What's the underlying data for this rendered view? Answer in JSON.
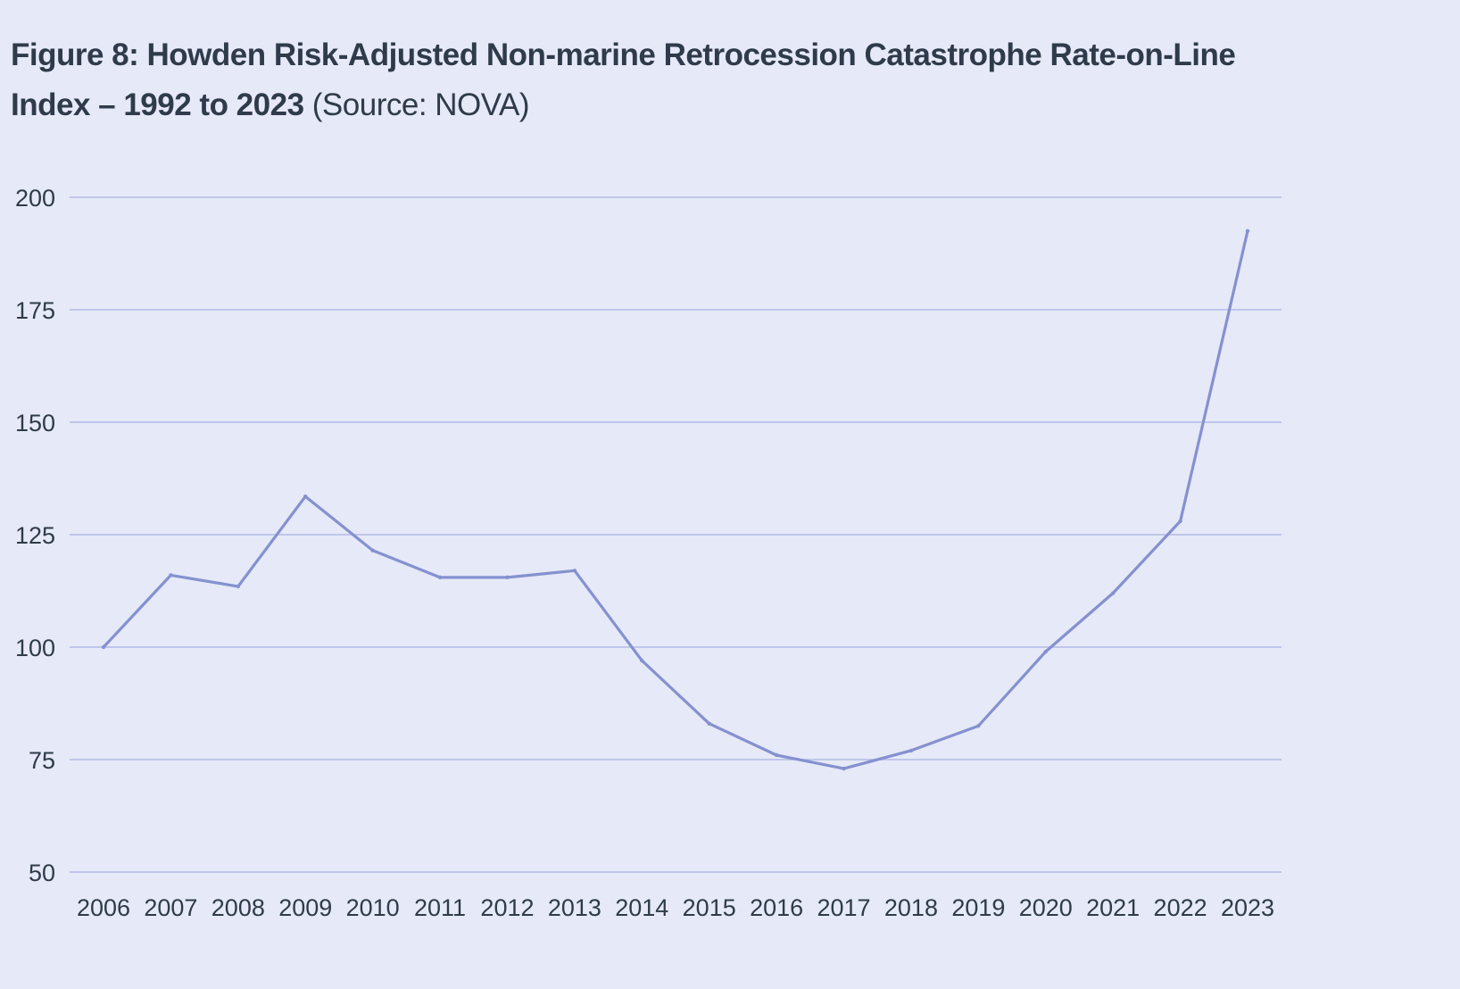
{
  "title": {
    "main": "Figure 8: Howden Risk-Adjusted Non-marine Retrocession Catastrophe Rate-on-Line Index – 1992 to 2023",
    "source": "(Source: NOVA)"
  },
  "colors": {
    "background": "#e6e9f7",
    "line": "#8591cf",
    "grid": "#b3bbe6",
    "text": "#2f3b4a"
  },
  "chart_data": {
    "type": "line",
    "title": "Figure 8: Howden Risk-Adjusted Non-marine Retrocession Catastrophe Rate-on-Line Index – 1992 to 2023",
    "subtitle": "(Source: NOVA)",
    "xlabel": "",
    "ylabel": "",
    "x": [
      "2006",
      "2007",
      "2008",
      "2009",
      "2010",
      "2011",
      "2012",
      "2013",
      "2014",
      "2015",
      "2016",
      "2017",
      "2018",
      "2019",
      "2020",
      "2021",
      "2022",
      "2023"
    ],
    "series": [
      {
        "values": [
          100,
          116,
          113.5,
          133.5,
          121.5,
          115.5,
          115.5,
          117,
          97,
          83,
          76,
          73,
          77,
          82.5,
          99,
          112,
          128,
          192.5
        ]
      }
    ],
    "ylim": [
      50,
      200
    ],
    "yticks": [
      50,
      75,
      100,
      125,
      150,
      175,
      200
    ],
    "grid": "horizontal",
    "legend": "none"
  }
}
